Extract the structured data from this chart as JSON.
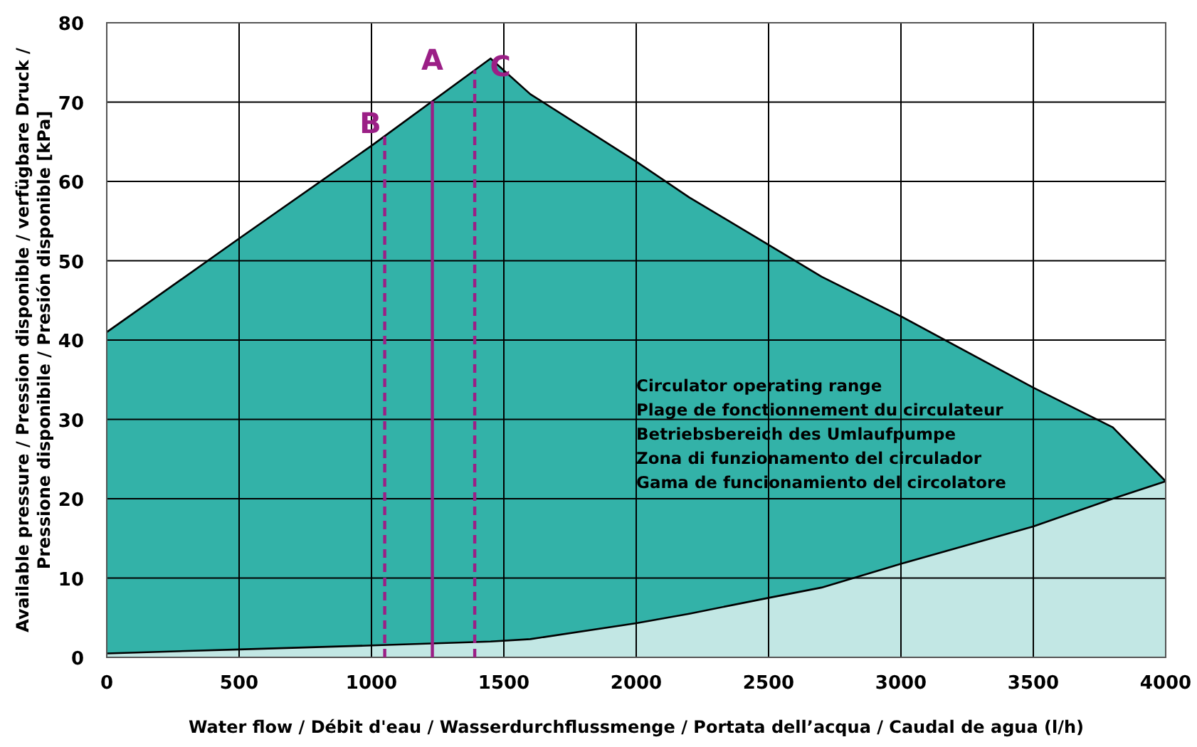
{
  "chart_data": {
    "type": "area",
    "xlabel": "Water flow / Débit d'eau / Wasserdurchflussmenge / Portata dell’acqua / Caudal de agua (l/h)",
    "ylabel": "Available pressure / Pression disponible / verfügbare Druck / Pressione disponibile / Presión disponible [kPa]",
    "x": [
      0,
      500,
      1000,
      1450,
      1600,
      2000,
      2200,
      2500,
      2700,
      3000,
      3500,
      3800,
      4000
    ],
    "series": [
      {
        "color": "#33b2a8",
        "values": [
          41,
          52.8,
          64.5,
          75.5,
          71,
          62.5,
          58,
          52,
          48,
          43,
          34,
          29,
          22.2
        ]
      },
      {
        "color": "#c2e7e4",
        "values": [
          0.5,
          1,
          1.5,
          2,
          2.3,
          4.3,
          5.5,
          7.5,
          8.8,
          11.8,
          16.5,
          20,
          22.2
        ]
      }
    ],
    "xlim": [
      0,
      4000
    ],
    "xticks": [
      0,
      500,
      1000,
      1500,
      2000,
      2500,
      3000,
      3500,
      4000
    ],
    "ylim": [
      0,
      80
    ],
    "yticks": [
      0,
      10,
      20,
      30,
      40,
      50,
      60,
      70,
      80
    ],
    "grid": true,
    "ref_lines": [
      {
        "axis": "x",
        "value": 1230,
        "label": "A",
        "color": "#9b1f86",
        "line_style": "solid"
      },
      {
        "axis": "x",
        "value": 1050,
        "label": "B",
        "color": "#9b1f86",
        "line_style": "dashed"
      },
      {
        "axis": "x",
        "value": 1390,
        "label": "C",
        "color": "#9b1f86",
        "line_style": "dashed"
      }
    ],
    "annotations": [
      "Circulator operating range",
      "Plage de fonctionnement du circulateur",
      "Betriebsbereich des Umlaufpumpe",
      "Zona di funzionamento del circulador",
      "Gama de funcionamiento del circolatore"
    ]
  }
}
